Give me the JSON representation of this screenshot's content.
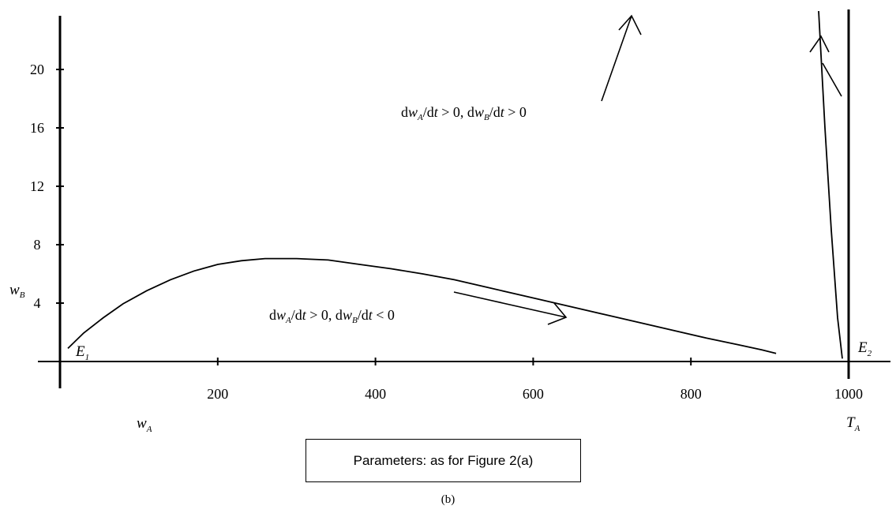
{
  "chart_data": {
    "type": "line",
    "title": "",
    "xlabel": "w",
    "xlabel_sub": "A",
    "ylabel": "w",
    "ylabel_sub": "B",
    "xlim": [
      0,
      1000
    ],
    "ylim": [
      0,
      24
    ],
    "x_ticks": [
      200,
      400,
      600,
      800,
      1000
    ],
    "y_ticks": [
      4,
      8,
      12,
      16,
      20
    ],
    "grid": false,
    "legend": "none",
    "series": [
      {
        "x": [
          10,
          30,
          55,
          80,
          110,
          140,
          170,
          200,
          230,
          260,
          300,
          340,
          380,
          420,
          460,
          500,
          540,
          580,
          620,
          660,
          700,
          740,
          780,
          820,
          860,
          890,
          908
        ],
        "y": [
          0.9,
          1.95,
          3.0,
          3.95,
          4.85,
          5.6,
          6.2,
          6.65,
          6.9,
          7.05,
          7.05,
          6.95,
          6.65,
          6.35,
          6.0,
          5.6,
          5.1,
          4.6,
          4.1,
          3.6,
          3.1,
          2.6,
          2.1,
          1.6,
          1.15,
          0.8,
          0.55
        ]
      },
      {
        "x": [
          992,
          986,
          978,
          970,
          962
        ],
        "y": [
          0.2,
          3.0,
          9.0,
          16.0,
          24.0
        ]
      }
    ],
    "points": [
      {
        "letter": "E",
        "sub": "1"
      },
      {
        "letter": "E",
        "sub": "2"
      }
    ],
    "vertical_line": {
      "x": 1000,
      "letter": "T",
      "sub": "A"
    },
    "annotations": [
      {
        "parts": [
          "d",
          "w",
          "A",
          "/d",
          "t",
          " > 0, d",
          "w",
          "B",
          "/d",
          "t",
          " > 0"
        ]
      },
      {
        "parts": [
          "d",
          "w",
          "A",
          "/d",
          "t",
          " > 0, d",
          "w",
          "B",
          "/d",
          "t",
          " < 0"
        ]
      }
    ]
  },
  "parameters_text": "Parameters: as for Figure 2(a)",
  "caption": "(b)"
}
